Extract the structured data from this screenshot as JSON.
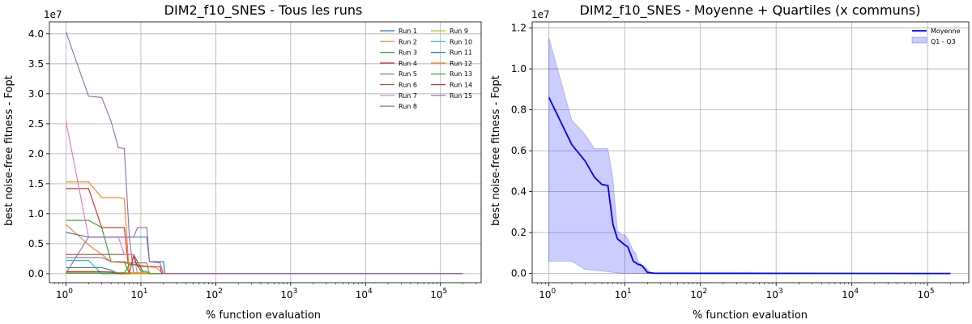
{
  "chart_data": [
    {
      "type": "line",
      "title": "DIM2_f10_SNES - Tous les runs",
      "xlabel": "% function evaluation",
      "ylabel": "best noise-free fitness - Fopt",
      "xscale": "log",
      "xlim": [
        0.6,
        350000
      ],
      "ylim": [
        -1500000,
        42000000
      ],
      "offset_text": "1e7",
      "x_ticks": [
        {
          "value": 1,
          "base": "10",
          "exp": "0"
        },
        {
          "value": 10,
          "base": "10",
          "exp": "1"
        },
        {
          "value": 100,
          "base": "10",
          "exp": "2"
        },
        {
          "value": 1000,
          "base": "10",
          "exp": "3"
        },
        {
          "value": 10000,
          "base": "10",
          "exp": "4"
        },
        {
          "value": 100000,
          "base": "10",
          "exp": "5"
        }
      ],
      "y_ticks": [
        {
          "value": 0,
          "label": "0.0"
        },
        {
          "value": 5000000,
          "label": "0.5"
        },
        {
          "value": 10000000,
          "label": "1.0"
        },
        {
          "value": 15000000,
          "label": "1.5"
        },
        {
          "value": 20000000,
          "label": "2.0"
        },
        {
          "value": 25000000,
          "label": "2.5"
        },
        {
          "value": 30000000,
          "label": "3.0"
        },
        {
          "value": 35000000,
          "label": "3.5"
        },
        {
          "value": 40000000,
          "label": "4.0"
        }
      ],
      "grid": true,
      "legend_position": "top-right",
      "legend_columns": 2,
      "series": [
        {
          "name": "Run 1",
          "color": "#1f77b4",
          "points": [
            [
              1,
              1000000
            ],
            [
              3,
              1000000
            ],
            [
              4,
              600000
            ],
            [
              5,
              0
            ],
            [
              200000,
              0
            ]
          ]
        },
        {
          "name": "Run 2",
          "color": "#ff7f0e",
          "points": [
            [
              1,
              8200000
            ],
            [
              2,
              4800000
            ],
            [
              3,
              3200000
            ],
            [
              4,
              2000000
            ],
            [
              5,
              1900000
            ],
            [
              6,
              1800000
            ],
            [
              16,
              1000000
            ],
            [
              20,
              0
            ],
            [
              200000,
              0
            ]
          ]
        },
        {
          "name": "Run 3",
          "color": "#2ca02c",
          "points": [
            [
              1,
              8900000
            ],
            [
              2,
              8900000
            ],
            [
              3,
              7700000
            ],
            [
              4,
              2000000
            ],
            [
              6,
              2000000
            ],
            [
              7,
              0
            ],
            [
              200000,
              0
            ]
          ]
        },
        {
          "name": "Run 4",
          "color": "#d62728",
          "points": [
            [
              1,
              14200000
            ],
            [
              2,
              14200000
            ],
            [
              3,
              7700000
            ],
            [
              6,
              7700000
            ],
            [
              7,
              0
            ],
            [
              200000,
              0
            ]
          ]
        },
        {
          "name": "Run 5",
          "color": "#9467bd",
          "points": [
            [
              1,
              40300000
            ],
            [
              2,
              29600000
            ],
            [
              3,
              29400000
            ],
            [
              4,
              25400000
            ],
            [
              5,
              21000000
            ],
            [
              6,
              20900000
            ],
            [
              7,
              6200000
            ],
            [
              8,
              0
            ],
            [
              200000,
              0
            ]
          ]
        },
        {
          "name": "Run 6",
          "color": "#8c564b",
          "points": [
            [
              1,
              3200000
            ],
            [
              2,
              3200000
            ],
            [
              5,
              3200000
            ],
            [
              8,
              3200000
            ],
            [
              9,
              2000000
            ],
            [
              11,
              0
            ],
            [
              200000,
              0
            ]
          ]
        },
        {
          "name": "Run 7",
          "color": "#e377c2",
          "points": [
            [
              1,
              25400000
            ],
            [
              2,
              6100000
            ],
            [
              5,
              6100000
            ],
            [
              6,
              3200000
            ],
            [
              8,
              3200000
            ],
            [
              9,
              0
            ],
            [
              200000,
              0
            ]
          ]
        },
        {
          "name": "Run 8",
          "color": "#7f7f7f",
          "points": [
            [
              1,
              2700000
            ],
            [
              3,
              2700000
            ],
            [
              4,
              2000000
            ],
            [
              6,
              2000000
            ],
            [
              7,
              1800000
            ],
            [
              12,
              1800000
            ],
            [
              13,
              0
            ],
            [
              200000,
              0
            ]
          ]
        },
        {
          "name": "Run 9",
          "color": "#bcbd22",
          "points": [
            [
              1,
              400000
            ],
            [
              3,
              400000
            ],
            [
              4,
              200000
            ],
            [
              13,
              200000
            ],
            [
              14,
              0
            ],
            [
              200000,
              0
            ]
          ]
        },
        {
          "name": "Run 10",
          "color": "#17becf",
          "points": [
            [
              1,
              2200000
            ],
            [
              2,
              2200000
            ],
            [
              3,
              0
            ],
            [
              200000,
              0
            ]
          ]
        },
        {
          "name": "Run 11",
          "color": "#1f77b4",
          "points": [
            [
              1,
              6900000
            ],
            [
              2,
              6100000
            ],
            [
              12,
              6100000
            ],
            [
              13,
              2000000
            ],
            [
              20,
              2000000
            ],
            [
              21,
              0
            ],
            [
              200000,
              0
            ]
          ]
        },
        {
          "name": "Run 12",
          "color": "#ff7f0e",
          "points": [
            [
              1,
              15300000
            ],
            [
              2,
              15300000
            ],
            [
              3,
              12700000
            ],
            [
              5,
              12700000
            ],
            [
              6,
              12500000
            ],
            [
              7,
              0
            ],
            [
              200000,
              0
            ]
          ]
        },
        {
          "name": "Run 13",
          "color": "#2ca02c",
          "points": [
            [
              1,
              100000
            ],
            [
              6,
              100000
            ],
            [
              7,
              1500000
            ],
            [
              9,
              1500000
            ],
            [
              10,
              400000
            ],
            [
              12,
              400000
            ],
            [
              13,
              0
            ],
            [
              200000,
              0
            ]
          ]
        },
        {
          "name": "Run 14",
          "color": "#d62728",
          "points": [
            [
              1,
              300000
            ],
            [
              4,
              300000
            ],
            [
              5,
              0
            ],
            [
              7,
              0
            ],
            [
              8,
              3000000
            ],
            [
              9,
              1200000
            ],
            [
              18,
              1200000
            ],
            [
              19,
              0
            ],
            [
              200000,
              0
            ]
          ]
        },
        {
          "name": "Run 15",
          "color": "#9467bd",
          "points": [
            [
              1,
              100000
            ],
            [
              2,
              6100000
            ],
            [
              8,
              6100000
            ],
            [
              9,
              7700000
            ],
            [
              12,
              7700000
            ],
            [
              13,
              2000000
            ],
            [
              18,
              1800000
            ],
            [
              20,
              0
            ],
            [
              200000,
              0
            ]
          ]
        }
      ]
    },
    {
      "type": "area",
      "title": "DIM2_f10_SNES - Moyenne + Quartiles (x communs)",
      "xlabel": "% function evaluation",
      "ylabel": "best noise-free fitness - Fopt",
      "xscale": "log",
      "xlim": [
        0.6,
        350000
      ],
      "ylim": [
        -450000,
        12300000
      ],
      "offset_text": "1e7",
      "x_ticks": [
        {
          "value": 1,
          "base": "10",
          "exp": "0"
        },
        {
          "value": 10,
          "base": "10",
          "exp": "1"
        },
        {
          "value": 100,
          "base": "10",
          "exp": "2"
        },
        {
          "value": 1000,
          "base": "10",
          "exp": "3"
        },
        {
          "value": 10000,
          "base": "10",
          "exp": "4"
        },
        {
          "value": 100000,
          "base": "10",
          "exp": "5"
        }
      ],
      "y_ticks": [
        {
          "value": 0,
          "label": "0.0"
        },
        {
          "value": 2000000,
          "label": "0.2"
        },
        {
          "value": 4000000,
          "label": "0.4"
        },
        {
          "value": 6000000,
          "label": "0.6"
        },
        {
          "value": 8000000,
          "label": "0.8"
        },
        {
          "value": 10000000,
          "label": "1.0"
        },
        {
          "value": 12000000,
          "label": "1.2"
        }
      ],
      "grid": true,
      "legend_position": "top-right",
      "mean": {
        "name": "Moyenne",
        "color": "#0000ff",
        "points": [
          [
            1,
            8600000
          ],
          [
            2,
            6300000
          ],
          [
            3,
            5500000
          ],
          [
            4,
            4700000
          ],
          [
            5,
            4350000
          ],
          [
            6,
            4300000
          ],
          [
            7,
            2400000
          ],
          [
            8,
            1700000
          ],
          [
            10,
            1400000
          ],
          [
            11,
            1300000
          ],
          [
            13,
            600000
          ],
          [
            15,
            450000
          ],
          [
            16,
            420000
          ],
          [
            17,
            380000
          ],
          [
            19,
            150000
          ],
          [
            20,
            50000
          ],
          [
            25,
            10000
          ],
          [
            200000,
            0
          ]
        ]
      },
      "quartiles": {
        "name": "Q1 - Q3",
        "color": "#0000ff",
        "q3": [
          [
            1,
            11500000
          ],
          [
            2,
            7500000
          ],
          [
            3,
            6800000
          ],
          [
            4,
            6100000
          ],
          [
            5,
            6100000
          ],
          [
            6,
            6100000
          ],
          [
            7,
            4600000
          ],
          [
            8,
            2100000
          ],
          [
            9,
            1900000
          ],
          [
            10,
            1900000
          ],
          [
            11,
            1700000
          ],
          [
            13,
            1100000
          ],
          [
            14,
            1000000
          ],
          [
            15,
            600000
          ],
          [
            17,
            400000
          ],
          [
            19,
            300000
          ],
          [
            21,
            100000
          ],
          [
            25,
            0
          ],
          [
            200000,
            0
          ]
        ],
        "q1": [
          [
            1,
            600000
          ],
          [
            2,
            600000
          ],
          [
            3,
            200000
          ],
          [
            4,
            150000
          ],
          [
            5,
            120000
          ],
          [
            7,
            50000
          ],
          [
            10,
            0
          ],
          [
            200000,
            0
          ]
        ]
      }
    }
  ]
}
